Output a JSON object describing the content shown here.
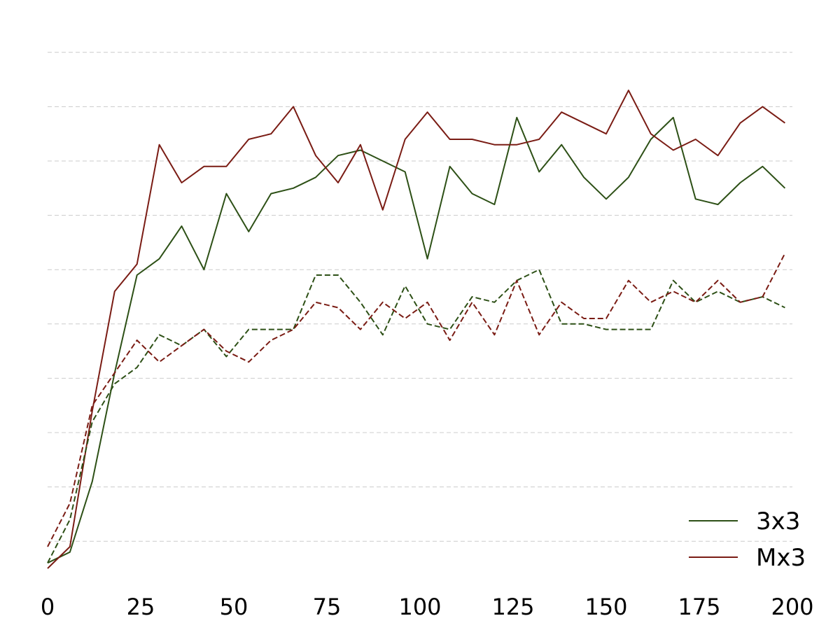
{
  "chart_data": {
    "type": "line",
    "title": "",
    "xlabel": "",
    "ylabel": "",
    "xlim": [
      0,
      200
    ],
    "ylim": [
      0,
      1
    ],
    "x_ticks": [
      0,
      25,
      50,
      75,
      100,
      125,
      150,
      175,
      200
    ],
    "x_tick_labels": [
      "0",
      "25",
      "50",
      "75",
      "100",
      "125",
      "150",
      "175",
      "200"
    ],
    "y_grid_values": [
      0.05,
      0.15,
      0.25,
      0.35,
      0.45,
      0.55,
      0.65,
      0.75,
      0.85,
      0.95
    ],
    "grid": "horizontal dashed",
    "legend_position": "bottom-right",
    "legend": [
      {
        "label": "3x3",
        "color": "#2d5016"
      },
      {
        "label": "Mx3",
        "color": "#7a1c14"
      }
    ],
    "x": [
      0,
      6,
      12,
      18,
      24,
      30,
      36,
      42,
      48,
      54,
      60,
      66,
      72,
      78,
      84,
      90,
      96,
      102,
      108,
      114,
      120,
      126,
      132,
      138,
      144,
      150,
      156,
      162,
      168,
      174,
      180,
      186,
      192,
      198
    ],
    "series": [
      {
        "name": "3x3",
        "color": "#2d5016",
        "dash": "solid",
        "values": [
          0.01,
          0.03,
          0.16,
          0.36,
          0.54,
          0.57,
          0.63,
          0.55,
          0.69,
          0.62,
          0.69,
          0.7,
          0.72,
          0.76,
          0.77,
          0.75,
          0.73,
          0.57,
          0.74,
          0.69,
          0.67,
          0.83,
          0.73,
          0.78,
          0.72,
          0.68,
          0.72,
          0.79,
          0.83,
          0.68,
          0.67,
          0.71,
          0.74,
          0.7
        ]
      },
      {
        "name": "Mx3",
        "color": "#7a1c14",
        "dash": "solid",
        "values": [
          0.0,
          0.04,
          0.29,
          0.51,
          0.56,
          0.78,
          0.71,
          0.74,
          0.74,
          0.79,
          0.8,
          0.85,
          0.76,
          0.71,
          0.78,
          0.66,
          0.79,
          0.84,
          0.79,
          0.79,
          0.78,
          0.78,
          0.79,
          0.84,
          0.82,
          0.8,
          0.88,
          0.8,
          0.77,
          0.79,
          0.76,
          0.82,
          0.85,
          0.82
        ]
      },
      {
        "name": "",
        "color": "#2d5016",
        "dash": "dashed",
        "values": [
          0.01,
          0.09,
          0.27,
          0.34,
          0.37,
          0.43,
          0.41,
          0.44,
          0.39,
          0.44,
          0.44,
          0.44,
          0.54,
          0.54,
          0.49,
          0.43,
          0.52,
          0.45,
          0.44,
          0.5,
          0.49,
          0.53,
          0.55,
          0.45,
          0.45,
          0.44,
          0.44,
          0.44,
          0.53,
          0.49,
          0.51,
          0.49,
          0.5,
          0.48
        ]
      },
      {
        "name": "",
        "color": "#7a1c14",
        "dash": "dashed",
        "values": [
          0.04,
          0.12,
          0.3,
          0.36,
          0.42,
          0.38,
          0.41,
          0.44,
          0.4,
          0.38,
          0.42,
          0.44,
          0.49,
          0.48,
          0.44,
          0.49,
          0.46,
          0.49,
          0.42,
          0.49,
          0.43,
          0.53,
          0.43,
          0.49,
          0.46,
          0.46,
          0.53,
          0.49,
          0.51,
          0.49,
          0.53,
          0.49,
          0.5,
          0.58
        ]
      }
    ]
  }
}
